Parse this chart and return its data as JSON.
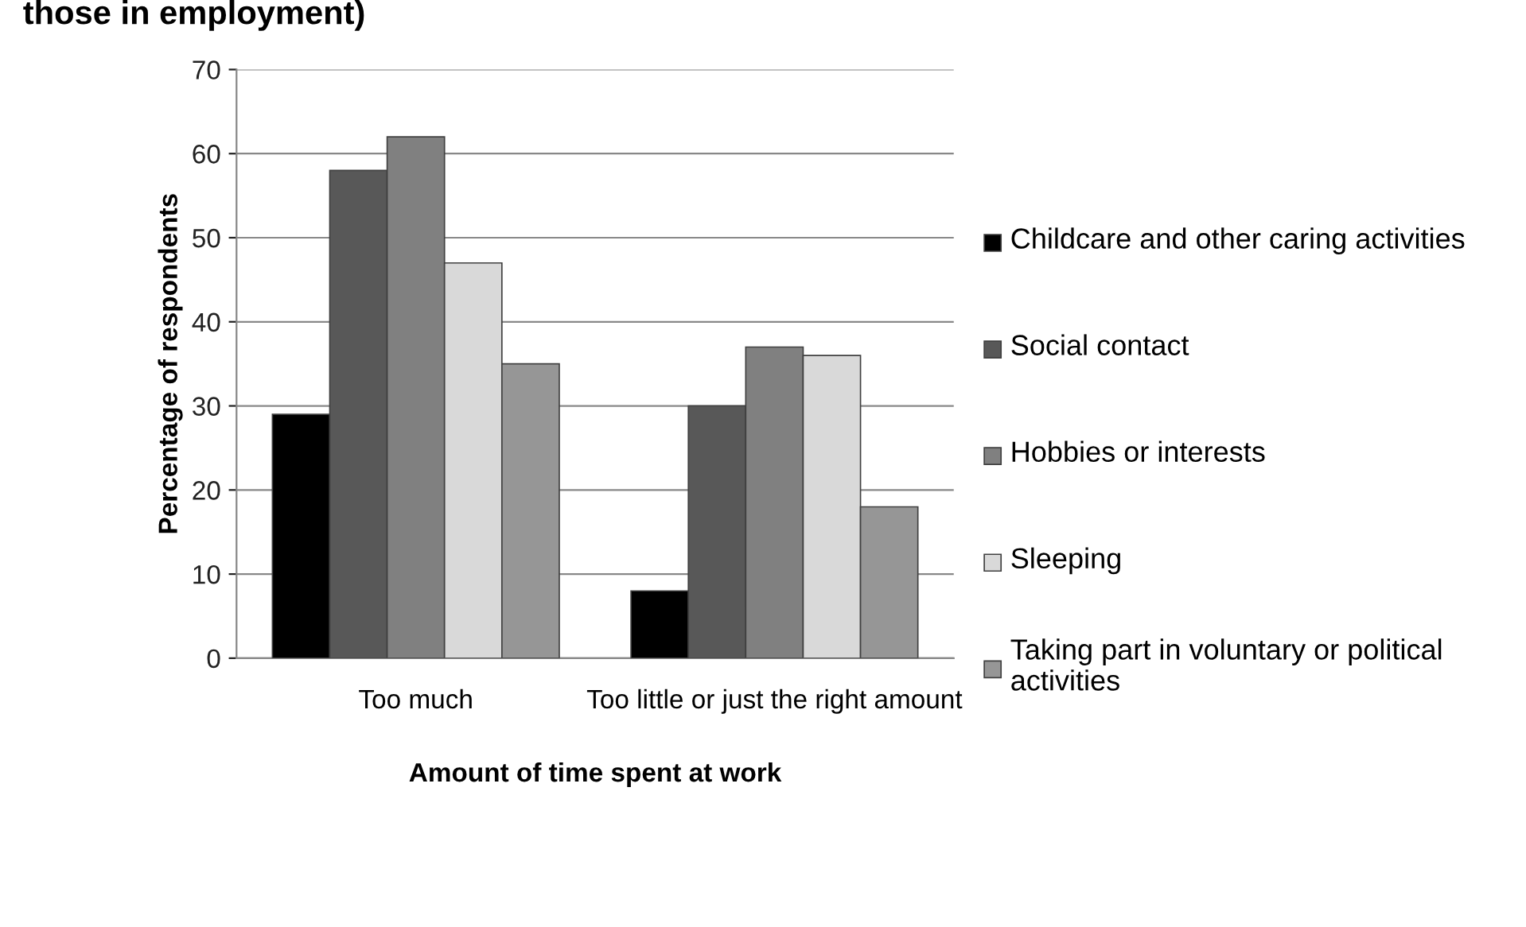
{
  "chart_data": {
    "type": "bar",
    "title": "those in employment)",
    "xlabel": "Amount of time spent at work",
    "ylabel": "Percentage of respondents",
    "categories": [
      "Too much",
      "Too little or just the right amount"
    ],
    "series": [
      {
        "name": "Childcare and other caring activities",
        "color": "#000000",
        "values": [
          29,
          8
        ]
      },
      {
        "name": "Social contact",
        "color": "#585858",
        "values": [
          58,
          30
        ]
      },
      {
        "name": "Hobbies or interests",
        "color": "#808080",
        "values": [
          62,
          37
        ]
      },
      {
        "name": "Sleeping",
        "color": "#d9d9d9",
        "values": [
          47,
          36
        ]
      },
      {
        "name": "Taking part in voluntary or political activities",
        "color": "#969696",
        "values": [
          35,
          18
        ]
      }
    ],
    "ylim": [
      0,
      70
    ],
    "yticks": [
      0,
      10,
      20,
      30,
      40,
      50,
      60,
      70
    ],
    "grid": "y",
    "legend": "right"
  }
}
